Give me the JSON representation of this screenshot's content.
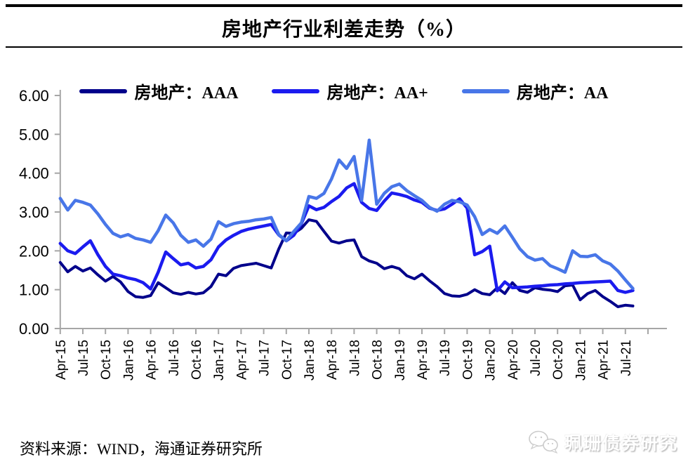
{
  "title": "房地产行业利差走势（%）",
  "source": "资料来源：WIND，海通证券研究所",
  "watermark": "珮珊债券研究",
  "chart_data": {
    "type": "line",
    "title": "房地产行业利差走势（%）",
    "xlabel": "",
    "ylabel": "",
    "ylim": [
      0,
      6
    ],
    "grid": false,
    "legend_position": "top",
    "axis_color": "#a6a6a6",
    "y_tick_labels": [
      "0.00",
      "1.00",
      "2.00",
      "3.00",
      "4.00",
      "5.00",
      "6.00"
    ],
    "x_tick_labels": [
      "Apr-15",
      "Jul-15",
      "Oct-15",
      "Jan-16",
      "Apr-16",
      "Jul-16",
      "Oct-16",
      "Jan-17",
      "Apr-17",
      "Jul-17",
      "Oct-17",
      "Jan-18",
      "Apr-18",
      "Jul-18",
      "Oct-18",
      "Jan-19",
      "Apr-19",
      "Jul-19",
      "Oct-19",
      "Jan-20",
      "Apr-20",
      "Jul-20",
      "Oct-20",
      "Jan-21",
      "Apr-21",
      "Jul-21"
    ],
    "x_start_month": "Apr-15",
    "x_points_interval": "monthly",
    "series": [
      {
        "name": "房地产：AAA",
        "color": "#00008B",
        "width": 4,
        "values": [
          1.7,
          1.46,
          1.6,
          1.48,
          1.56,
          1.38,
          1.22,
          1.34,
          1.2,
          0.95,
          0.82,
          0.8,
          0.85,
          1.18,
          1.05,
          0.92,
          0.88,
          0.93,
          0.89,
          0.92,
          1.08,
          1.4,
          1.36,
          1.55,
          1.62,
          1.65,
          1.68,
          1.62,
          1.56,
          2.05,
          2.46,
          2.45,
          2.58,
          2.8,
          2.76,
          2.5,
          2.25,
          2.2,
          2.26,
          2.28,
          1.85,
          1.74,
          1.68,
          1.54,
          1.6,
          1.54,
          1.36,
          1.28,
          1.4,
          1.23,
          1.08,
          0.9,
          0.84,
          0.83,
          0.88,
          1.0,
          0.9,
          0.87,
          1.05,
          0.9,
          1.18,
          0.98,
          0.93,
          1.05,
          1.01,
          0.99,
          0.95,
          1.1,
          1.12,
          0.74,
          0.9,
          0.98,
          0.82,
          0.7,
          0.56,
          0.6,
          0.58
        ]
      },
      {
        "name": "房地产：AA+",
        "color": "#1B1BEF",
        "width": 4.5,
        "values": [
          2.19,
          2.0,
          1.93,
          2.1,
          2.26,
          1.9,
          1.6,
          1.4,
          1.36,
          1.3,
          1.26,
          1.18,
          1.02,
          1.45,
          1.97,
          1.8,
          1.64,
          1.68,
          1.56,
          1.6,
          1.77,
          2.1,
          2.28,
          2.4,
          2.5,
          2.56,
          2.6,
          2.64,
          2.68,
          2.41,
          2.26,
          2.4,
          2.7,
          3.16,
          3.06,
          3.12,
          3.27,
          3.4,
          3.62,
          3.73,
          3.25,
          3.09,
          3.04,
          3.28,
          3.49,
          3.45,
          3.4,
          3.31,
          3.25,
          3.1,
          3.04,
          3.08,
          3.2,
          3.34,
          3.1,
          1.9,
          1.98,
          2.12,
          0.97,
          1.2,
          1.05,
          1.06,
          1.07,
          1.09,
          1.1,
          1.12,
          1.13,
          1.15,
          1.16,
          1.18,
          1.19,
          1.2,
          1.21,
          1.22,
          0.98,
          0.93,
          0.98
        ]
      },
      {
        "name": "房地产：AA",
        "color": "#4876E8",
        "width": 4.5,
        "values": [
          3.35,
          3.05,
          3.3,
          3.25,
          3.18,
          2.95,
          2.68,
          2.45,
          2.36,
          2.42,
          2.32,
          2.28,
          2.22,
          2.52,
          2.92,
          2.72,
          2.4,
          2.22,
          2.28,
          2.12,
          2.3,
          2.75,
          2.63,
          2.7,
          2.74,
          2.76,
          2.8,
          2.82,
          2.86,
          2.42,
          2.26,
          2.5,
          2.72,
          3.4,
          3.35,
          3.48,
          3.85,
          4.34,
          4.12,
          4.43,
          3.3,
          4.85,
          3.2,
          3.48,
          3.65,
          3.72,
          3.55,
          3.42,
          3.3,
          3.12,
          3.02,
          3.2,
          3.3,
          3.26,
          3.18,
          2.88,
          2.42,
          2.55,
          2.45,
          2.64,
          2.35,
          2.05,
          1.85,
          1.76,
          1.8,
          1.62,
          1.54,
          1.45,
          2.0,
          1.86,
          1.85,
          1.9,
          1.74,
          1.66,
          1.48,
          1.25,
          1.03
        ]
      }
    ]
  }
}
